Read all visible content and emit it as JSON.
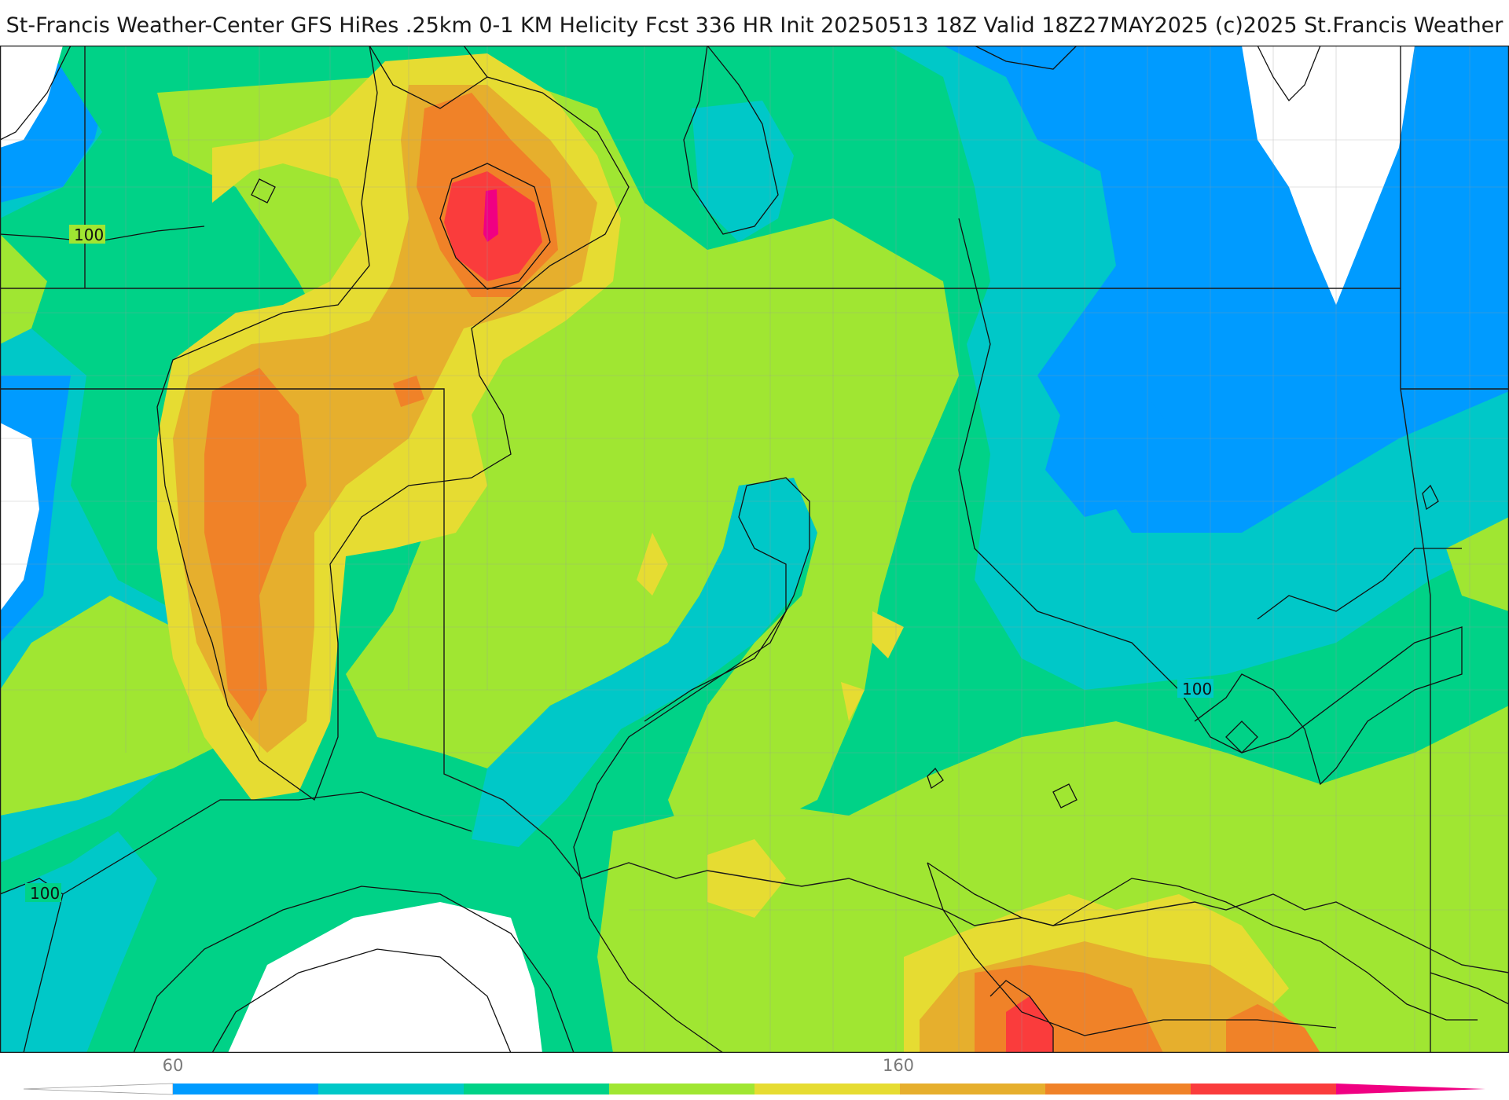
{
  "title": "St-Francis Weather-Center GFS HiRes .25km 0-1 KM Helicity Fcst 336 HR Init 20250513 18Z  Valid 18Z27MAY2025     (c)2025 St.Francis Weather",
  "contour_labels": [
    "100",
    "100",
    "100"
  ],
  "colorbar": {
    "tick_labels": [
      "60",
      "160"
    ],
    "colors": [
      "#ffffff",
      "#009bff",
      "#00c8c8",
      "#00d287",
      "#a0e632",
      "#e6dc32",
      "#e6af2d",
      "#f08228",
      "#fa3c3c",
      "#f00082"
    ]
  }
}
